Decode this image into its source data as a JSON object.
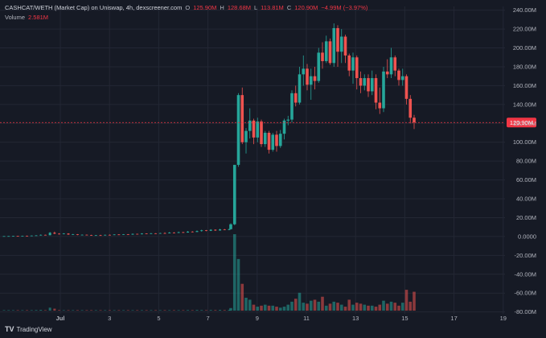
{
  "header": {
    "pair": "CASHCAT/WETH (Market Cap) on Uniswap, 4h, dexscreener.com",
    "o_label": "O",
    "o_value": "125.90M",
    "h_label": "H",
    "h_value": "128.68M",
    "l_label": "L",
    "l_value": "113.81M",
    "c_label": "C",
    "c_value": "120.90M",
    "change": "−4.99M (−3.97%)"
  },
  "volume": {
    "label": "Volume",
    "value": "2.581M"
  },
  "brand": {
    "logo": "TV",
    "name": "TradingView"
  },
  "colors": {
    "up": "#26a69a",
    "down": "#ef5350",
    "bg": "#161a25",
    "grid": "#232734",
    "text": "#b2b5be",
    "last_price_line": "#f23645"
  },
  "chart_data": {
    "type": "candlestick",
    "timeframe": "4h",
    "x_tick_labels": [
      "Jul",
      "3",
      "5",
      "7",
      "9",
      "11",
      "13",
      "15",
      "17",
      "19"
    ],
    "y_tick_labels": [
      "240.00M",
      "220.00M",
      "200.00M",
      "180.00M",
      "160.00M",
      "140.00M",
      "120.00M",
      "100.00M",
      "80.00M",
      "60.00M",
      "40.00M",
      "20.00M",
      "0.0000",
      "-20.00M",
      "-40.00M",
      "-60.00M",
      "-80.00M"
    ],
    "ylim": [
      -82,
      244
    ],
    "last_price_label": "120.90M",
    "last_price": 120.9,
    "candles_phase1": [
      [
        0.4,
        0.5,
        0.3,
        0.45
      ],
      [
        0.45,
        0.6,
        0.4,
        0.5
      ],
      [
        0.5,
        0.7,
        0.4,
        0.6
      ],
      [
        0.6,
        0.8,
        0.5,
        0.55
      ],
      [
        0.55,
        0.9,
        0.5,
        0.8
      ],
      [
        0.8,
        1.0,
        0.6,
        0.7
      ],
      [
        0.7,
        1.1,
        0.6,
        1.0
      ],
      [
        1.0,
        1.4,
        0.9,
        1.2
      ],
      [
        1.2,
        2.2,
        1.0,
        1.8
      ],
      [
        1.8,
        2.0,
        1.2,
        1.4
      ],
      [
        1.4,
        4.8,
        1.3,
        4.0
      ],
      [
        4.0,
        5.2,
        2.6,
        3.0
      ],
      [
        3.0,
        3.6,
        2.2,
        2.6
      ],
      [
        2.6,
        3.6,
        2.3,
        3.2
      ],
      [
        3.2,
        3.4,
        1.8,
        2.1
      ],
      [
        2.1,
        2.8,
        1.6,
        2.4
      ],
      [
        2.4,
        2.6,
        1.4,
        1.8
      ],
      [
        1.8,
        2.2,
        1.4,
        1.9
      ],
      [
        1.9,
        2.1,
        1.5,
        1.6
      ],
      [
        1.6,
        1.8,
        1.0,
        1.2
      ],
      [
        1.2,
        1.6,
        1.0,
        1.4
      ],
      [
        1.4,
        1.8,
        1.1,
        1.2
      ],
      [
        1.2,
        2.0,
        1.1,
        1.8
      ],
      [
        1.8,
        2.2,
        1.5,
        1.6
      ],
      [
        1.6,
        2.4,
        1.5,
        2.2
      ],
      [
        2.2,
        2.5,
        1.8,
        1.9
      ],
      [
        1.9,
        2.6,
        1.8,
        2.4
      ],
      [
        2.4,
        2.6,
        1.8,
        2.0
      ],
      [
        2.0,
        3.2,
        1.9,
        2.8
      ],
      [
        2.8,
        3.0,
        2.2,
        2.4
      ],
      [
        2.4,
        3.6,
        2.3,
        3.2
      ],
      [
        3.2,
        3.4,
        2.6,
        2.8
      ],
      [
        2.8,
        3.8,
        2.7,
        3.4
      ],
      [
        3.4,
        3.6,
        2.8,
        3.0
      ],
      [
        3.0,
        4.0,
        2.9,
        3.6
      ],
      [
        3.6,
        4.4,
        3.2,
        3.4
      ],
      [
        3.4,
        4.8,
        3.3,
        4.2
      ],
      [
        4.2,
        4.6,
        3.6,
        3.8
      ],
      [
        3.8,
        5.2,
        3.7,
        4.6
      ],
      [
        4.6,
        5.0,
        4.0,
        4.2
      ],
      [
        4.2,
        5.8,
        4.1,
        5.2
      ],
      [
        5.2,
        5.6,
        4.4,
        4.8
      ],
      [
        4.8,
        6.4,
        4.7,
        5.8
      ],
      [
        5.8,
        7.2,
        5.2,
        6.6
      ],
      [
        6.6,
        7.0,
        5.6,
        6.0
      ],
      [
        6.0,
        7.8,
        5.8,
        7.2
      ],
      [
        7.2,
        7.6,
        6.0,
        6.4
      ],
      [
        6.4,
        8.2,
        6.2,
        7.6
      ],
      [
        7.6,
        8.0,
        6.8,
        7.0
      ],
      [
        7.0,
        8.2,
        6.8,
        7.8
      ]
    ],
    "candles_phase2": [
      [
        7.8,
        14,
        7.5,
        13
      ],
      [
        13,
        76,
        12,
        76
      ],
      [
        76,
        152,
        74,
        150
      ],
      [
        150,
        158,
        98,
        100
      ],
      [
        100,
        115,
        88,
        112
      ],
      [
        112,
        136,
        104,
        123
      ],
      [
        123,
        125,
        98,
        105
      ],
      [
        105,
        126,
        100,
        122
      ],
      [
        122,
        124,
        95,
        98
      ],
      [
        98,
        112,
        95,
        110
      ],
      [
        110,
        112,
        88,
        92
      ],
      [
        92,
        110,
        90,
        108
      ],
      [
        108,
        112,
        90,
        96
      ],
      [
        96,
        113,
        94,
        109
      ],
      [
        109,
        125,
        103,
        123
      ],
      [
        123,
        128,
        118,
        124
      ],
      [
        124,
        155,
        121,
        152
      ],
      [
        152,
        160,
        138,
        142
      ],
      [
        142,
        180,
        140,
        172
      ],
      [
        172,
        192,
        160,
        178
      ],
      [
        178,
        183,
        155,
        161
      ],
      [
        161,
        178,
        145,
        170
      ],
      [
        170,
        180,
        156,
        165
      ],
      [
        165,
        200,
        163,
        195
      ],
      [
        195,
        206,
        178,
        186
      ],
      [
        186,
        213,
        184,
        207
      ],
      [
        207,
        210,
        182,
        184
      ],
      [
        184,
        226,
        180,
        221
      ],
      [
        221,
        224,
        180,
        196
      ],
      [
        196,
        220,
        184,
        212
      ],
      [
        212,
        214,
        184,
        192
      ],
      [
        192,
        194,
        170,
        176
      ],
      [
        176,
        195,
        162,
        190
      ],
      [
        190,
        192,
        156,
        168
      ],
      [
        168,
        175,
        152,
        160
      ],
      [
        160,
        172,
        155,
        168
      ],
      [
        168,
        172,
        148,
        154
      ],
      [
        154,
        176,
        150,
        168
      ],
      [
        168,
        172,
        135,
        142
      ],
      [
        142,
        158,
        130,
        136
      ],
      [
        136,
        180,
        132,
        175
      ],
      [
        175,
        188,
        168,
        172
      ],
      [
        172,
        200,
        168,
        190
      ],
      [
        190,
        192,
        170,
        176
      ],
      [
        176,
        178,
        160,
        166
      ],
      [
        166,
        178,
        160,
        170
      ],
      [
        170,
        172,
        140,
        146
      ],
      [
        146,
        150,
        120,
        126
      ],
      [
        126,
        129,
        114,
        121
      ]
    ],
    "volume_phase1": [
      0.3,
      0.2,
      0.3,
      0.2,
      0.4,
      0.3,
      0.5,
      0.6,
      0.8,
      0.4,
      3.0,
      2.0,
      0.6,
      0.5,
      0.4,
      0.3,
      0.5,
      0.3,
      0.4,
      0.3,
      0.2,
      0.4,
      0.3,
      0.4,
      0.2,
      0.3,
      0.4,
      0.3,
      0.4,
      0.3,
      0.5,
      0.3,
      0.4,
      0.3,
      0.4,
      0.5,
      0.4,
      0.3,
      0.5,
      0.4,
      0.6,
      0.5,
      0.7,
      0.6,
      0.5,
      0.7,
      0.6,
      0.8,
      0.6,
      0.8
    ],
    "volume_phase2": [
      2.6,
      77,
      52,
      27,
      13,
      11,
      6,
      4,
      5,
      6,
      5,
      5,
      4,
      3,
      4,
      6,
      9,
      12,
      18,
      8,
      7,
      10,
      11,
      9,
      14,
      5,
      7,
      9,
      8,
      6,
      4,
      11,
      6,
      8,
      7,
      6,
      5,
      5,
      4,
      6,
      10,
      7,
      9,
      8,
      5,
      8,
      21,
      9,
      19
    ],
    "volume_scale_max": 77
  }
}
